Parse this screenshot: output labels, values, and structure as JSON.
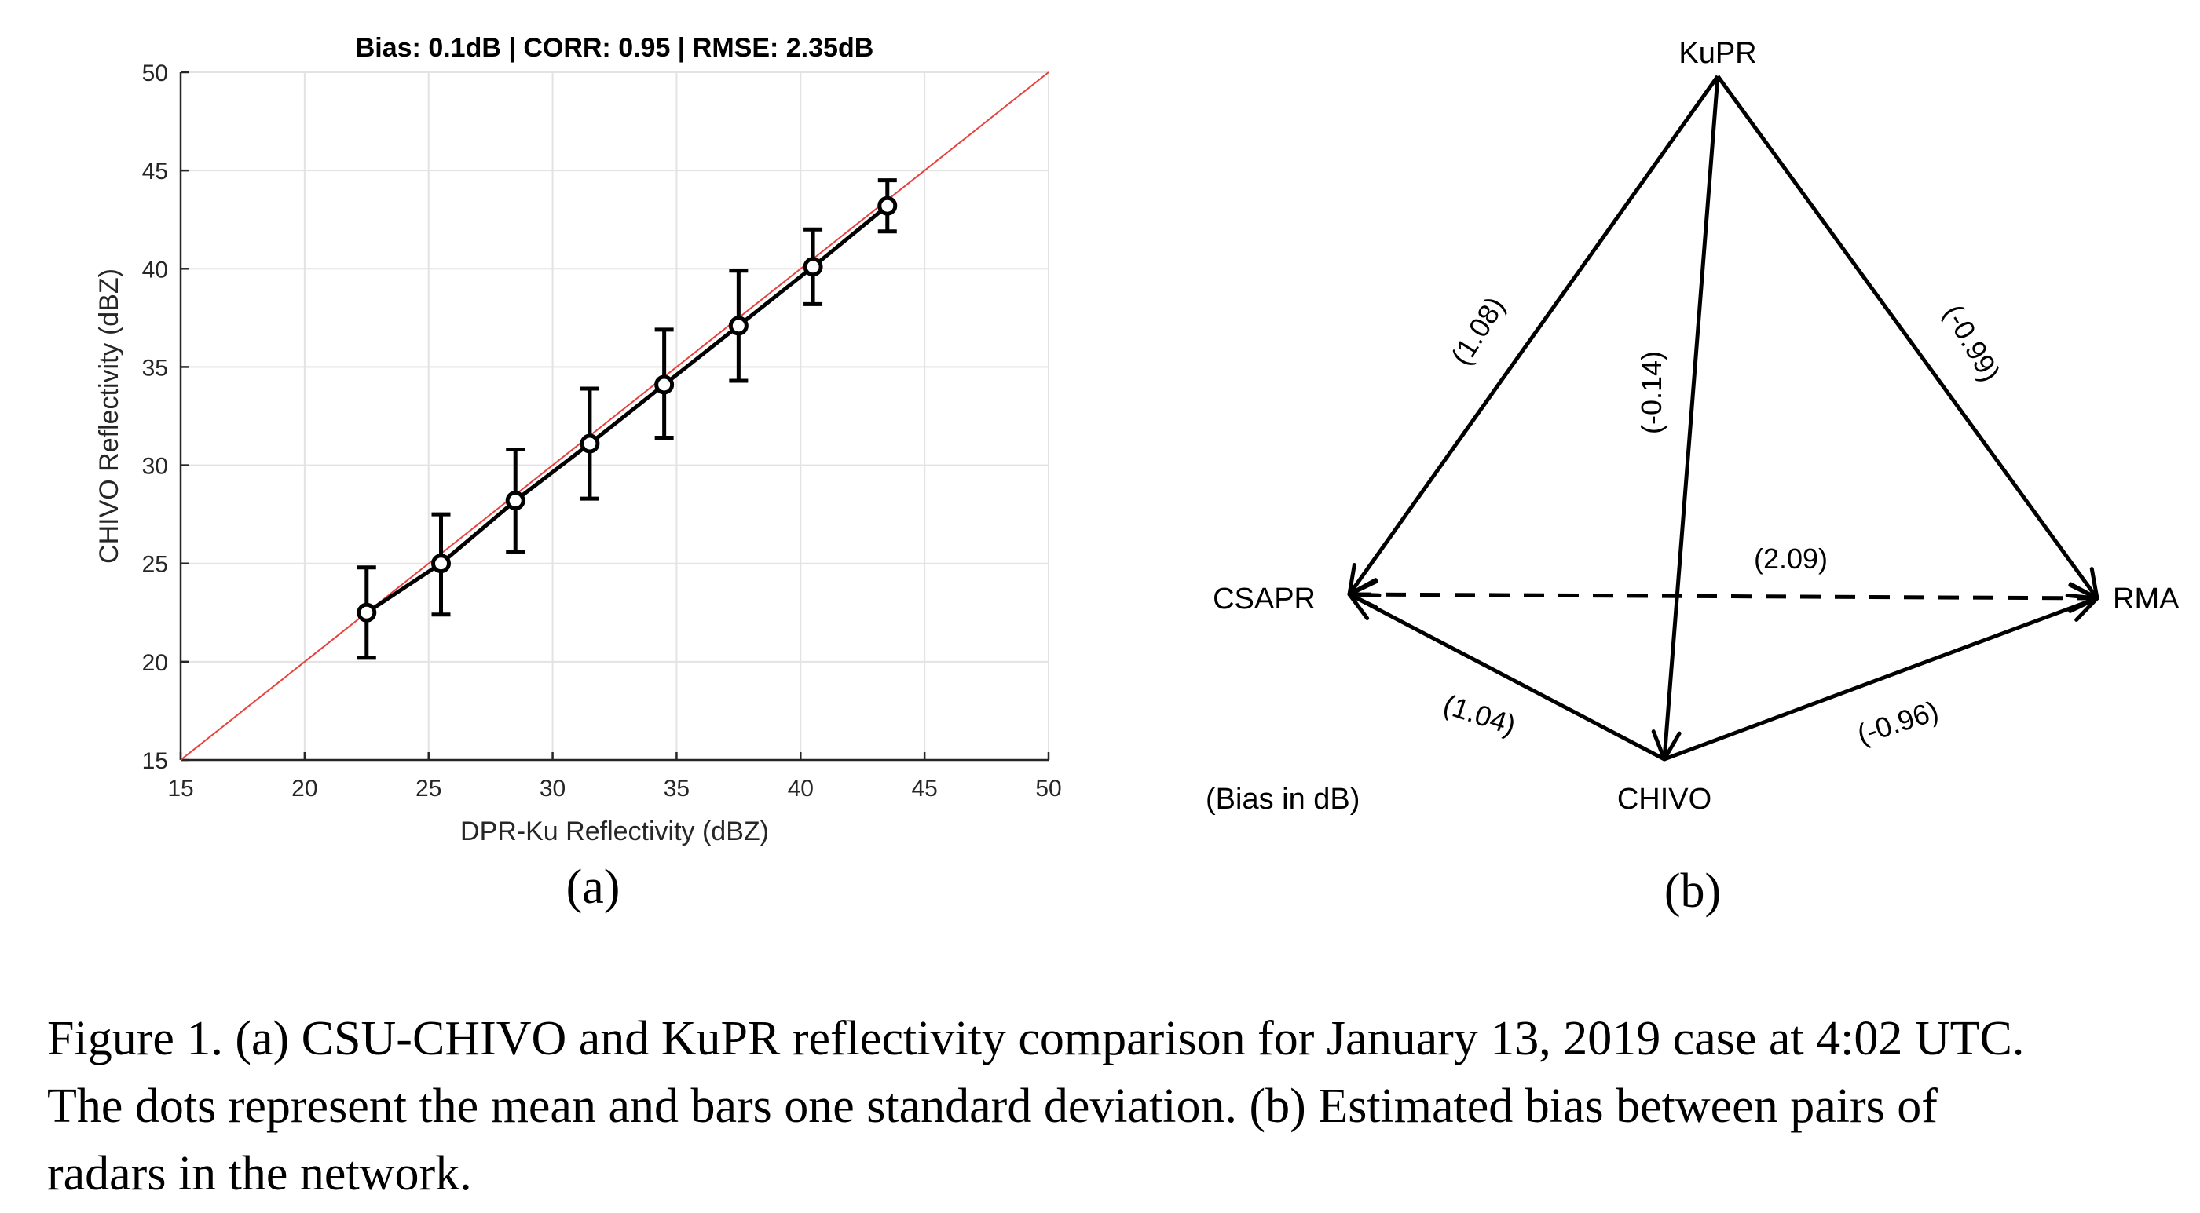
{
  "chart_data": [
    {
      "type": "line",
      "title": "Bias: 0.1dB | CORR: 0.95 | RMSE: 2.35dB",
      "xlabel": "DPR-Ku Reflectivity (dBZ)",
      "ylabel": "CHIVO Reflectivity (dBZ)",
      "xlim": [
        15,
        50
      ],
      "ylim": [
        15,
        50
      ],
      "xticks": [
        15,
        20,
        25,
        30,
        35,
        40,
        45,
        50
      ],
      "yticks": [
        15,
        20,
        25,
        30,
        35,
        40,
        45,
        50
      ],
      "grid": true,
      "colors": {
        "data": "#000000",
        "reference": "#e8413c",
        "grid": "#e3e3e3"
      },
      "series": [
        {
          "x": [
            22.5,
            25.5,
            28.5,
            31.5,
            34.5,
            37.5,
            40.5,
            43.5
          ],
          "y": [
            22.5,
            25.0,
            28.2,
            31.1,
            34.1,
            37.1,
            40.1,
            43.2
          ],
          "error_low": [
            20.2,
            22.4,
            25.6,
            28.3,
            31.4,
            34.3,
            38.2,
            41.9
          ],
          "error_high": [
            24.8,
            27.5,
            30.8,
            33.9,
            36.9,
            39.9,
            42.0,
            44.5
          ]
        },
        {
          "x": [
            15,
            50
          ],
          "y": [
            15,
            50
          ]
        }
      ],
      "panel_label": "(a)"
    },
    {
      "type": "diagram",
      "nodes": [
        "KuPR",
        "CSAPR",
        "RMA",
        "CHIVO"
      ],
      "edges": [
        {
          "from": "KuPR",
          "to": "CSAPR",
          "label": "(1.08)",
          "style": "solid"
        },
        {
          "from": "KuPR",
          "to": "CHIVO",
          "label": "(-0.14)",
          "style": "solid"
        },
        {
          "from": "KuPR",
          "to": "RMA",
          "label": "(-0.99)",
          "style": "solid"
        },
        {
          "from": "RMA",
          "to": "CSAPR",
          "label": "(2.09)",
          "style": "dashed"
        },
        {
          "from": "CHIVO",
          "to": "CSAPR",
          "label": "(1.04)",
          "style": "solid"
        },
        {
          "from": "CHIVO",
          "to": "RMA",
          "label": "(-0.96)",
          "style": "solid"
        }
      ],
      "note": "(Bias in dB)",
      "panel_label": "(b)"
    }
  ],
  "caption": {
    "lines": [
      "Figure 1. (a) CSU-CHIVO and KuPR reflectivity comparison for January 13, 2019 case at 4:02 UTC.",
      "The dots represent the mean and bars one standard deviation. (b) Estimated bias between pairs of",
      "radars in the network."
    ]
  }
}
